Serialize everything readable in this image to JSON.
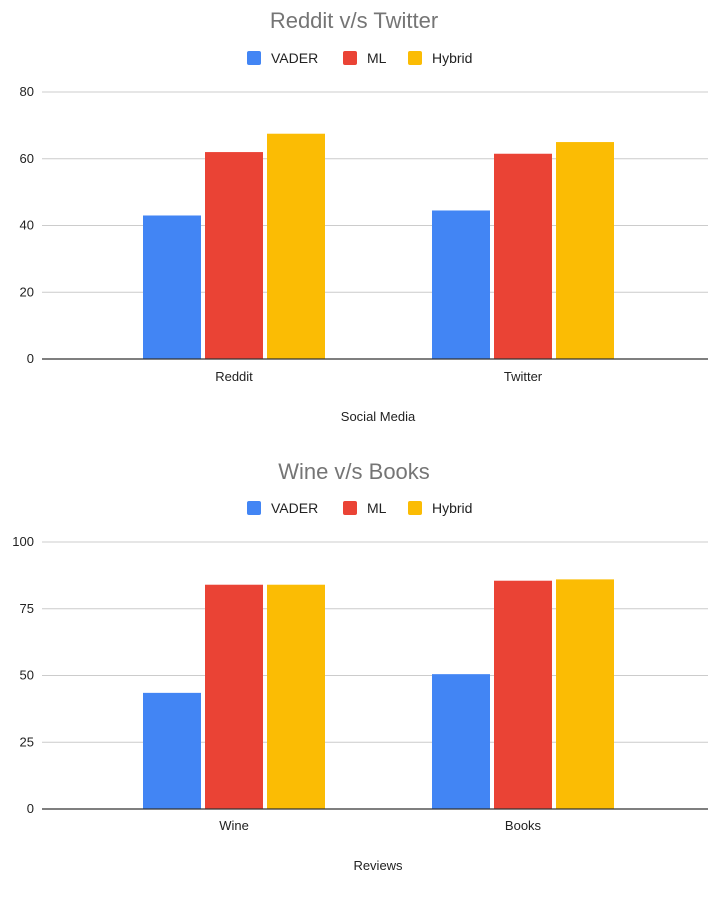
{
  "chart_data": [
    {
      "type": "bar",
      "title": "Reddit v/s Twitter",
      "xlabel": "Social Media",
      "ylabel": "",
      "categories": [
        "Reddit",
        "Twitter"
      ],
      "series": [
        {
          "name": "VADER",
          "color": "#4285f4",
          "values": [
            43,
            44.5
          ]
        },
        {
          "name": "ML",
          "color": "#ea4335",
          "values": [
            62,
            61.5
          ]
        },
        {
          "name": "Hybrid",
          "color": "#fbbc04",
          "values": [
            67.5,
            65
          ]
        }
      ],
      "ylim": [
        0,
        80
      ],
      "yticks": [
        "0",
        "20",
        "40",
        "60",
        "80"
      ],
      "legend": "top",
      "grid": true
    },
    {
      "type": "bar",
      "title": "Wine v/s Books",
      "xlabel": "Reviews",
      "ylabel": "",
      "categories": [
        "Wine",
        "Books"
      ],
      "series": [
        {
          "name": "VADER",
          "color": "#4285f4",
          "values": [
            43.5,
            50.5
          ]
        },
        {
          "name": "ML",
          "color": "#ea4335",
          "values": [
            84,
            85.5
          ]
        },
        {
          "name": "Hybrid",
          "color": "#fbbc04",
          "values": [
            84,
            86
          ]
        }
      ],
      "ylim": [
        0,
        100
      ],
      "yticks": [
        "0",
        "25",
        "50",
        "75",
        "100"
      ],
      "legend": "top",
      "grid": true
    }
  ]
}
